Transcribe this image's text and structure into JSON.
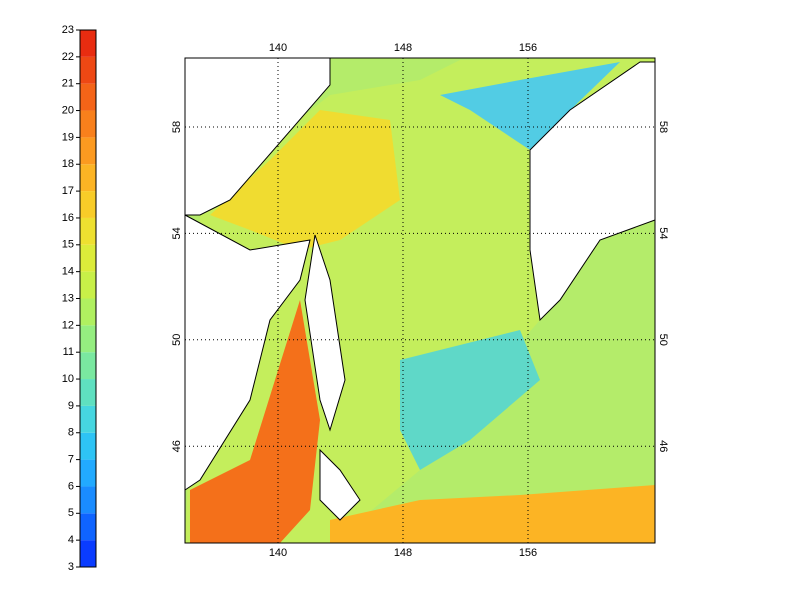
{
  "colorbar": {
    "ticks": [
      3,
      4,
      5,
      6,
      7,
      8,
      9,
      10,
      11,
      12,
      13,
      14,
      15,
      16,
      17,
      18,
      19,
      20,
      21,
      22,
      23
    ],
    "colors": [
      "#0a3cff",
      "#0f64ff",
      "#1a8cff",
      "#22aaff",
      "#2ec4f5",
      "#46d6e0",
      "#5fe0c0",
      "#7ae8a0",
      "#95ee80",
      "#b0f060",
      "#c8f048",
      "#dcec3a",
      "#eee030",
      "#f8cc28",
      "#fcb424",
      "#fc9a20",
      "#f8801c",
      "#f46418",
      "#ee4814",
      "#e82c10"
    ]
  },
  "map": {
    "lon_ticks": [
      140,
      148,
      156
    ],
    "lat_ticks": [
      58,
      54,
      50,
      46
    ]
  }
}
